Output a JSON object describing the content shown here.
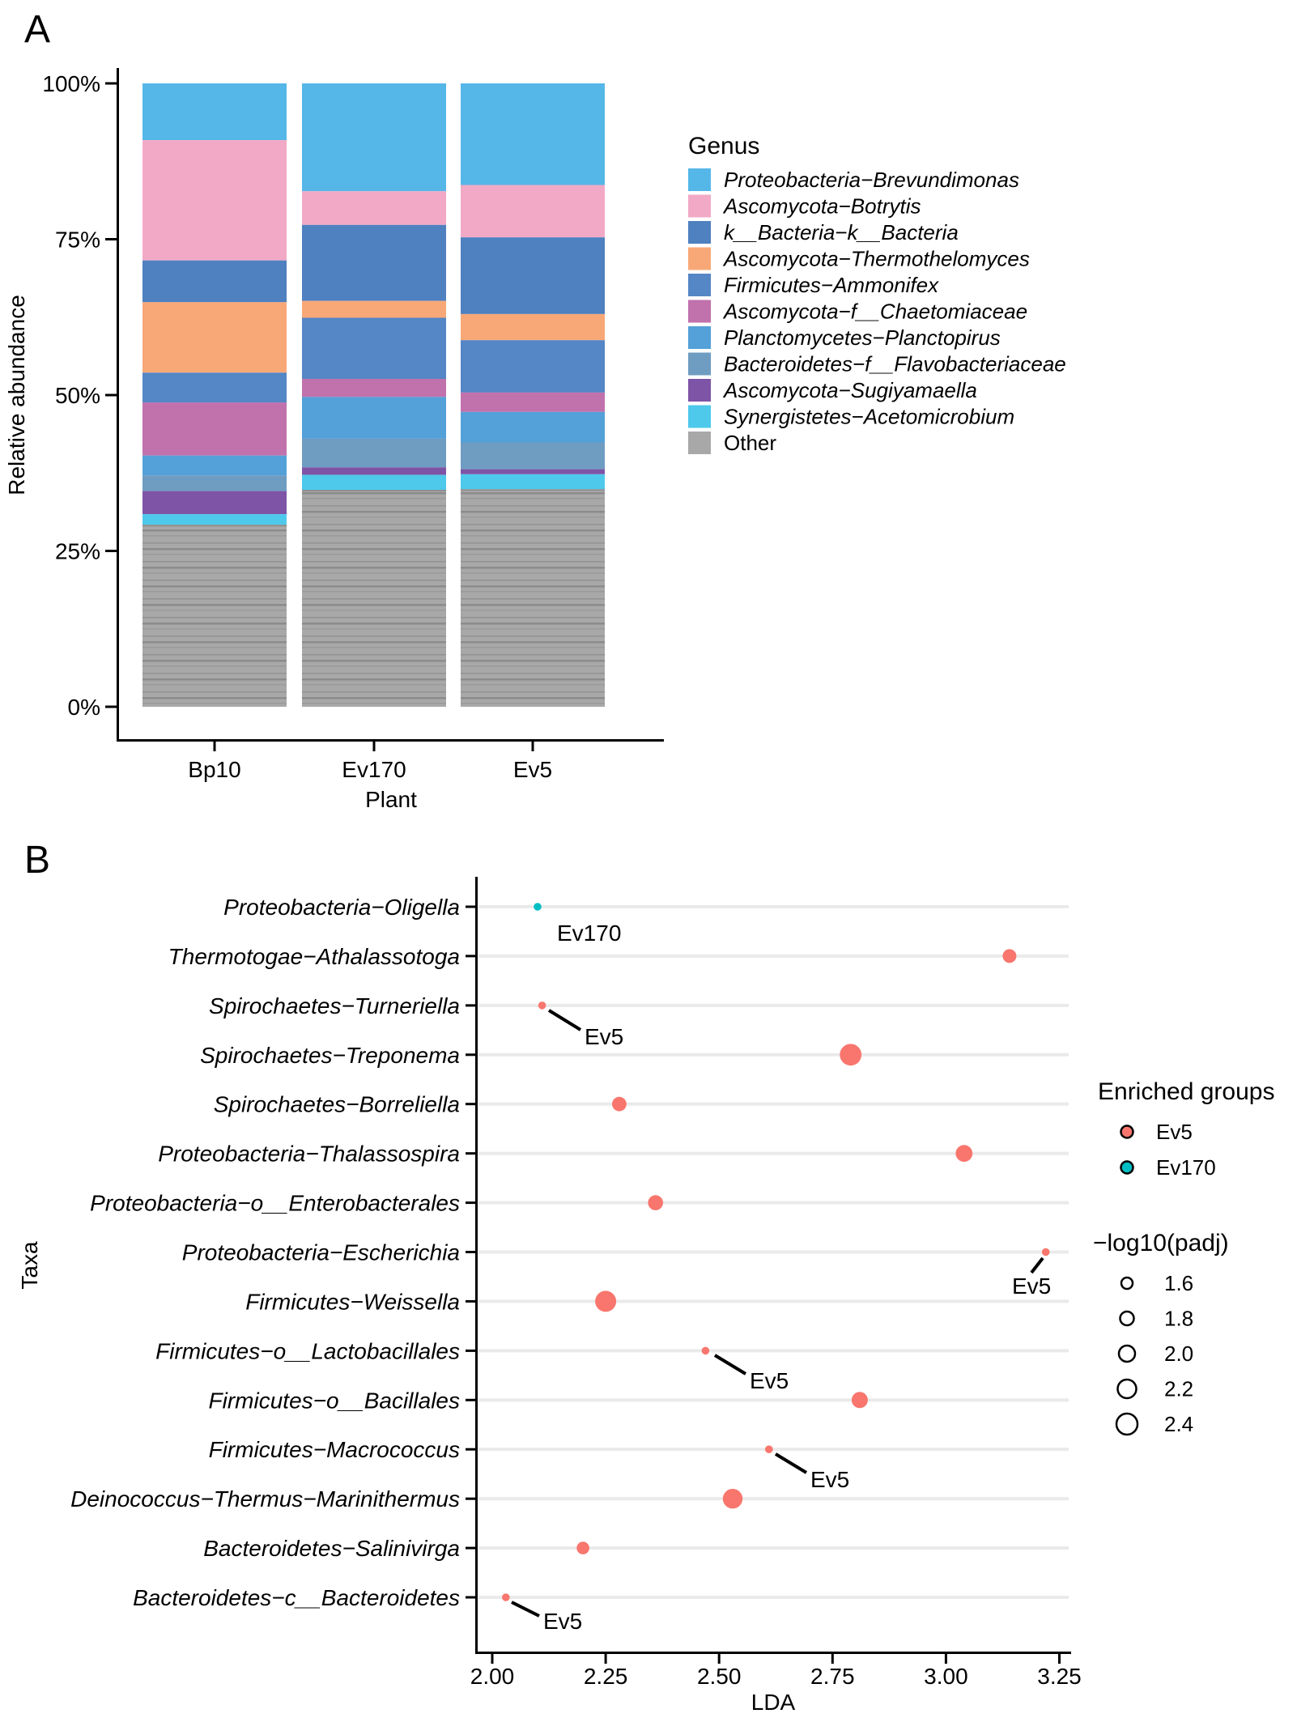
{
  "figure": {
    "panel_a_label": "A",
    "panel_b_label": "B"
  },
  "chart_data": [
    {
      "type": "bar",
      "stacked": true,
      "title": "",
      "xlabel": "Plant",
      "ylabel": "Relative abundance",
      "categories": [
        "Bp10",
        "Ev170",
        "Ev5"
      ],
      "ytick_labels": [
        "100%",
        "75%",
        "50%",
        "25%",
        "0%"
      ],
      "ytick_values": [
        100,
        75,
        50,
        25,
        0
      ],
      "ylim": [
        0,
        100
      ],
      "legend_title": "Genus",
      "grid": false,
      "legend_position": "right",
      "series": [
        {
          "name": "Proteobacteria−Brevundimonas",
          "color": "#55B7E8",
          "italic": true,
          "values": [
            9.1,
            17.3,
            16.3
          ]
        },
        {
          "name": "Ascomycota−Botrytis",
          "color": "#F2A9C6",
          "italic": true,
          "values": [
            19.3,
            5.4,
            8.4
          ]
        },
        {
          "name": "k__Bacteria−k__Bacteria",
          "color": "#4F80BF",
          "italic": true,
          "values": [
            6.7,
            12.2,
            12.3
          ]
        },
        {
          "name": "Ascomycota−Thermothelomyces",
          "color": "#F8A877",
          "italic": true,
          "values": [
            11.3,
            2.7,
            4.2
          ]
        },
        {
          "name": "Firmicutes−Ammonifex",
          "color": "#5586C5",
          "italic": true,
          "values": [
            4.8,
            9.8,
            8.4
          ]
        },
        {
          "name": "Ascomycota−f__Chaetomiaceae",
          "color": "#C171AC",
          "italic": true,
          "values": [
            8.5,
            2.9,
            3.1
          ]
        },
        {
          "name": "Planctomycetes−Planctopirus",
          "color": "#54A0D8",
          "italic": true,
          "values": [
            3.2,
            6.7,
            4.9
          ]
        },
        {
          "name": "Bacteroidetes−f__Flavobacteriaceae",
          "color": "#6F9CC1",
          "italic": true,
          "values": [
            2.5,
            4.6,
            4.3
          ]
        },
        {
          "name": "Ascomycota−Sugiyamaella",
          "color": "#7E54A6",
          "italic": true,
          "values": [
            3.7,
            1.2,
            0.8
          ]
        },
        {
          "name": "Synergistetes−Acetomicrobium",
          "color": "#4EC9EB",
          "italic": true,
          "values": [
            1.7,
            2.4,
            2.4
          ]
        },
        {
          "name": "Other",
          "color": "#A8A8A8",
          "italic": false,
          "values": [
            29.2,
            34.8,
            34.9
          ]
        }
      ]
    },
    {
      "type": "scatter",
      "title": "",
      "xlabel": "LDA",
      "ylabel": "Taxa",
      "xtick_labels": [
        "2.00",
        "2.25",
        "2.50",
        "2.75",
        "3.00",
        "3.25"
      ],
      "xtick_values": [
        2.0,
        2.25,
        2.5,
        2.75,
        3.0,
        3.25
      ],
      "xlim": [
        1.97,
        3.28
      ],
      "grid": "horizontal",
      "legend_groups_title": "Enriched groups",
      "groups": [
        {
          "name": "Ev5",
          "color": "#F8766D"
        },
        {
          "name": "Ev170",
          "color": "#00BFC4"
        }
      ],
      "size_legend_title": "−log10(padj)",
      "size_legend_labels": [
        "1.6",
        "1.8",
        "2.0",
        "2.2",
        "2.4"
      ],
      "size_legend_values": [
        1.6,
        1.8,
        2.0,
        2.2,
        2.4
      ],
      "points": [
        {
          "taxon": "Proteobacteria−Oligella",
          "group": "Ev170",
          "lda": 2.1,
          "neglog10padj": 1.3,
          "annotation": "Ev170"
        },
        {
          "taxon": "Thermotogae−Athalassotoga",
          "group": "Ev5",
          "lda": 3.14,
          "neglog10padj": 1.8,
          "annotation": ""
        },
        {
          "taxon": "Spirochaetes−Turneriella",
          "group": "Ev5",
          "lda": 2.11,
          "neglog10padj": 1.3,
          "annotation": "Ev5"
        },
        {
          "taxon": "Spirochaetes−Treponema",
          "group": "Ev5",
          "lda": 2.79,
          "neglog10padj": 2.45,
          "annotation": ""
        },
        {
          "taxon": "Spirochaetes−Borreliella",
          "group": "Ev5",
          "lda": 2.28,
          "neglog10padj": 1.85,
          "annotation": ""
        },
        {
          "taxon": "Proteobacteria−Thalassospira",
          "group": "Ev5",
          "lda": 3.04,
          "neglog10padj": 2.05,
          "annotation": ""
        },
        {
          "taxon": "Proteobacteria−o__Enterobacterales",
          "group": "Ev5",
          "lda": 2.36,
          "neglog10padj": 1.9,
          "annotation": ""
        },
        {
          "taxon": "Proteobacteria−Escherichia",
          "group": "Ev5",
          "lda": 3.22,
          "neglog10padj": 1.3,
          "annotation": "Ev5"
        },
        {
          "taxon": "Firmicutes−Weissella",
          "group": "Ev5",
          "lda": 2.25,
          "neglog10padj": 2.4,
          "annotation": ""
        },
        {
          "taxon": "Firmicutes−o__Lactobacillales",
          "group": "Ev5",
          "lda": 2.47,
          "neglog10padj": 1.3,
          "annotation": "Ev5"
        },
        {
          "taxon": "Firmicutes−o__Bacillales",
          "group": "Ev5",
          "lda": 2.81,
          "neglog10padj": 2.0,
          "annotation": ""
        },
        {
          "taxon": "Firmicutes−Macrococcus",
          "group": "Ev5",
          "lda": 2.61,
          "neglog10padj": 1.3,
          "annotation": "Ev5"
        },
        {
          "taxon": "Deinococcus−Thermus−Marinithermus",
          "group": "Ev5",
          "lda": 2.53,
          "neglog10padj": 2.3,
          "annotation": ""
        },
        {
          "taxon": "Bacteroidetes−Salinivirga",
          "group": "Ev5",
          "lda": 2.2,
          "neglog10padj": 1.7,
          "annotation": ""
        },
        {
          "taxon": "Bacteroidetes−c__Bacteroidetes",
          "group": "Ev5",
          "lda": 2.03,
          "neglog10padj": 1.3,
          "annotation": "Ev5"
        }
      ]
    }
  ]
}
